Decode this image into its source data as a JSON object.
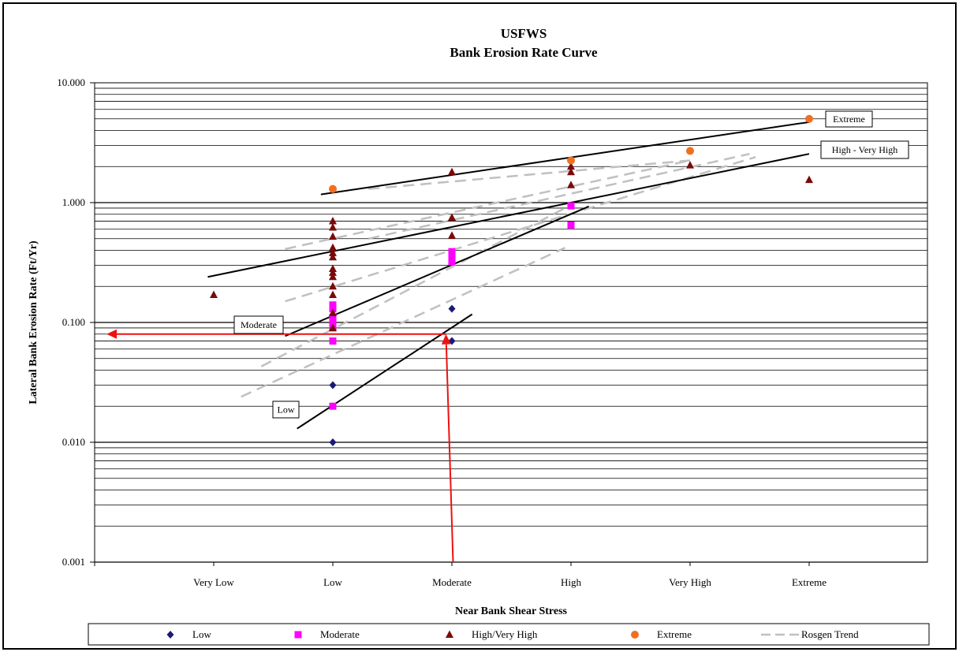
{
  "chart_data": {
    "type": "scatter",
    "title": "USFWS",
    "subtitle": "Bank Erosion Rate Curve",
    "xlabel": "Near Bank Shear Stress",
    "ylabel": "Lateral Bank Erosion Rate (Ft/Yr)",
    "y_scale": "log",
    "ylim": [
      0.001,
      10
    ],
    "y_ticks": [
      {
        "value": 10,
        "label": "10.000"
      },
      {
        "value": 1,
        "label": "1.000"
      },
      {
        "value": 0.1,
        "label": "0.100"
      },
      {
        "value": 0.01,
        "label": "0.010"
      },
      {
        "value": 0.001,
        "label": "0.001"
      }
    ],
    "categories": [
      "Very Low",
      "Low",
      "Moderate",
      "High",
      "Very High",
      "Extreme"
    ],
    "grid": true,
    "legend_position": "bottom",
    "series": [
      {
        "name": "Low",
        "marker": "diamond",
        "color": "#1a1a7a",
        "points": [
          [
            2,
            0.01
          ],
          [
            2,
            0.03
          ],
          [
            3,
            0.13
          ],
          [
            3,
            0.07
          ]
        ]
      },
      {
        "name": "Moderate",
        "marker": "square",
        "color": "#ff00ff",
        "points": [
          [
            2,
            0.02
          ],
          [
            2,
            0.07
          ],
          [
            2,
            0.09
          ],
          [
            2,
            0.1
          ],
          [
            2,
            0.11
          ],
          [
            2,
            0.13
          ],
          [
            2,
            0.14
          ],
          [
            3,
            0.32
          ],
          [
            3,
            0.36
          ],
          [
            3,
            0.39
          ],
          [
            4,
            0.65
          ],
          [
            4,
            0.94
          ]
        ]
      },
      {
        "name": "High/Very High",
        "marker": "triangle",
        "color": "#7a0a0a",
        "points": [
          [
            1,
            0.17
          ],
          [
            2,
            0.09
          ],
          [
            2,
            0.12
          ],
          [
            2,
            0.17
          ],
          [
            2,
            0.2
          ],
          [
            2,
            0.24
          ],
          [
            2,
            0.26
          ],
          [
            2,
            0.28
          ],
          [
            2,
            0.35
          ],
          [
            2,
            0.38
          ],
          [
            2,
            0.42
          ],
          [
            2,
            0.52
          ],
          [
            2,
            0.62
          ],
          [
            2,
            0.7
          ],
          [
            3,
            0.53
          ],
          [
            3,
            0.75
          ],
          [
            3,
            1.8
          ],
          [
            4,
            1.4
          ],
          [
            4,
            1.8
          ],
          [
            4,
            2.0
          ],
          [
            5,
            2.05
          ],
          [
            6,
            1.55
          ]
        ]
      },
      {
        "name": "Extreme",
        "marker": "circle",
        "color": "#f07020",
        "points": [
          [
            2,
            1.3
          ],
          [
            4,
            2.25
          ],
          [
            5,
            2.7
          ],
          [
            6,
            5.0
          ]
        ]
      },
      {
        "name": "Rosgen Trend",
        "marker": "dashed-line",
        "color": "#c0c0c0",
        "lines": [
          [
            [
              1.23,
              0.024
            ],
            [
              3.95,
              0.42
            ]
          ],
          [
            [
              1.4,
              0.043
            ],
            [
              3.95,
              0.9
            ]
          ],
          [
            [
              1.6,
              0.15
            ],
            [
              5.55,
              2.4
            ]
          ],
          [
            [
              1.6,
              0.41
            ],
            [
              5.0,
              2.25
            ]
          ],
          [
            [
              2.3,
              0.5
            ],
            [
              5.5,
              2.55
            ]
          ],
          [
            [
              2.3,
              1.3
            ],
            [
              5.0,
              2.25
            ]
          ]
        ]
      }
    ],
    "curves": [
      {
        "label": "Extreme",
        "points": [
          [
            1.9,
            1.17
          ],
          [
            6.0,
            4.7
          ]
        ]
      },
      {
        "label": "High - Very High",
        "points": [
          [
            0.95,
            0.24
          ],
          [
            6.0,
            2.55
          ]
        ]
      },
      {
        "label": "Moderate",
        "points": [
          [
            1.6,
            0.077
          ],
          [
            4.15,
            0.93
          ]
        ]
      },
      {
        "label": "Low",
        "points": [
          [
            1.7,
            0.013
          ],
          [
            3.17,
            0.117
          ]
        ]
      }
    ],
    "arrows": [
      {
        "from": [
          3.01,
          0.001
        ],
        "to": [
          2.95,
          0.08
        ]
      },
      {
        "from": [
          2.95,
          0.08
        ],
        "to": [
          0.1,
          0.08
        ]
      }
    ]
  }
}
